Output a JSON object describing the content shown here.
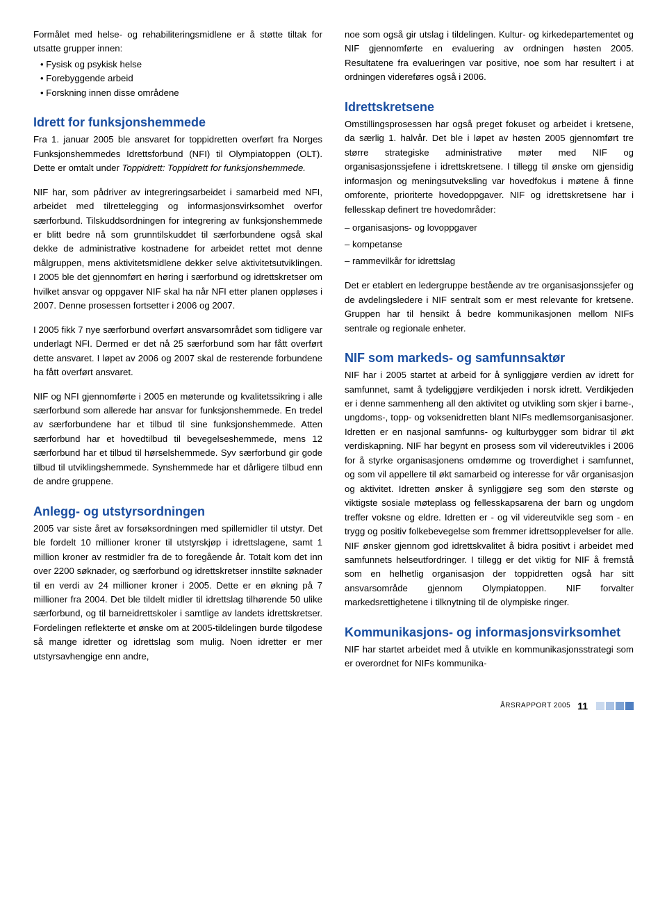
{
  "colors": {
    "heading": "#1a4ea0",
    "text": "#000000",
    "background": "#ffffff",
    "sq1": "#c9d9ee",
    "sq2": "#a9c2e4",
    "sq3": "#7da2d3",
    "sq4": "#4f7fc1"
  },
  "left": {
    "intro": "Formålet med helse- og rehabiliteringsmidlene er å støtte tiltak for utsatte grupper innen:",
    "bullets": [
      "• Fysisk og psykisk helse",
      "• Forebyggende arbeid",
      "• Forskning innen disse områdene"
    ],
    "s1_title": "Idrett for funksjonshemmede",
    "s1_p1a": "Fra 1. januar 2005 ble ansvaret for toppidretten overført fra Norges Funksjonshemmedes Idrettsforbund (NFI) til Olympiatoppen (OLT). Dette er omtalt under ",
    "s1_p1b": "Toppidrett: Toppidrett for funksjonshemmede.",
    "s1_p2": "NIF har, som pådriver av integreringsarbeidet i samarbeid med NFI, arbeidet med tilrettelegging og informasjonsvirksomhet overfor særforbund. Tilskuddsordningen for integrering av funksjonshemmede er blitt bedre nå som grunntilskuddet til særforbundene også skal dekke de administrative kostnadene for arbeidet rettet mot denne målgruppen, mens aktivitetsmidlene dekker selve aktivitetsutviklingen. I 2005 ble det gjennomført en høring i særforbund og idrettskretser om hvilket ansvar og oppgaver NIF skal ha når NFI etter planen oppløses i 2007. Denne prosessen fortsetter i 2006 og 2007.",
    "s1_p3": "I 2005 fikk 7 nye særforbund overført ansvarsområdet som tidligere var underlagt NFI. Dermed er det nå 25 særforbund som har fått overført dette ansvaret. I løpet av 2006 og 2007 skal de resterende forbundene ha fått overført ansvaret.",
    "s1_p4": "NIF og NFI gjennomførte i 2005 en møterunde og kvalitetssikring i alle særforbund som allerede har ansvar for funksjonshemmede. En tredel av særforbundene har et tilbud til sine funksjonshemmede. Atten særforbund har et hovedtilbud til bevegelseshemmede, mens 12 særforbund har et tilbud til hørselshemmede. Syv særforbund gir gode tilbud til utviklingshemmede. Synshemmede har et dårligere tilbud enn de andre gruppene.",
    "s2_title": "Anlegg- og utstyrsordningen",
    "s2_p1": "2005 var siste året av forsøksordningen med spillemidler til utstyr. Det ble fordelt 10 millioner kroner til utstyrskjøp i idrettslagene, samt 1 million kroner av restmidler fra de to foregående år. Totalt kom det inn over 2200 søknader, og særforbund og idrettskretser innstilte søknader til en verdi av 24 millioner kroner i 2005. Dette er en økning på 7 millioner fra 2004. Det ble tildelt midler til idrettslag tilhørende 50 ulike særforbund, og til barneidrettskoler i samtlige av landets idrettskretser. Fordelingen reflekterte et ønske om at 2005-tildelingen burde tilgodese så mange idretter og idrettslag som mulig. Noen idretter er mer utstyrsavhengige enn andre,"
  },
  "right": {
    "top_p": "noe som også gir utslag i tildelingen. Kultur- og kirkedepartementet og NIF gjennomførte en evaluering av ordningen høsten 2005. Resultatene fra evalueringen var positive, noe som har resultert i at ordningen videreføres også i 2006.",
    "s3_title": "Idrettskretsene",
    "s3_p1": "Omstillingsprosessen har også preget fokuset og arbeidet i kretsene, da særlig 1. halvår. Det ble i løpet av høsten 2005 gjennomført tre større strategiske administrative møter med NIF og organisasjonssjefene i idrettskretsene. I tillegg til ønske om gjensidig informasjon og meningsutveksling var hovedfokus i møtene å finne omforente, prioriterte hovedoppgaver. NIF og idrettskretsene har i fellesskap definert tre hovedområder:",
    "s3_items": [
      "– organisasjons- og lovoppgaver",
      "– kompetanse",
      "– rammevilkår for idrettslag"
    ],
    "s3_p2": "Det er etablert en ledergruppe bestående av tre organisasjonssjefer og de avdelingsledere i NIF sentralt som er mest relevante for kretsene. Gruppen har til hensikt å bedre kommunikasjonen mellom NIFs sentrale og regionale enheter.",
    "s4_title": "NIF som markeds- og samfunnsaktør",
    "s4_p1": "NIF har i 2005 startet at arbeid for å synliggjøre verdien av idrett for samfunnet, samt å tydeliggjøre verdikjeden i norsk idrett. Verdikjeden er i denne sammenheng all den aktivitet og utvikling som skjer i barne-, ungdoms-, topp- og voksenidretten blant NIFs medlemsorganisasjoner. Idretten er en nasjonal samfunns- og kulturbygger som bidrar til økt verdiskapning. NIF har begynt en prosess som vil videreutvikles i 2006 for å styrke organisasjonens omdømme og troverdighet i samfunnet, og som vil appellere til økt samarbeid og interesse for vår organisasjon og aktivitet. Idretten ønsker å synliggjøre seg som den største og viktigste sosiale møteplass og fellesskapsarena der barn og ungdom treffer voksne og eldre. Idretten er - og vil videreutvikle seg som - en trygg og positiv folkebevegelse som fremmer idrettsopplevelser for alle. NIF ønsker gjennom god idrettskvalitet å bidra positivt i arbeidet med samfunnets helseutfordringer. I tillegg er det viktig for NIF å fremstå som en helhetlig organisasjon der toppidretten også har sitt ansvarsområde gjennom Olympiatoppen. NIF forvalter markedsrettighetene i tilknytning til de olympiske ringer.",
    "s5_title": "Kommunikasjons- og informasjonsvirksomhet",
    "s5_p1": "NIF har startet arbeidet med å utvikle en kommunikasjonsstrategi som er overordnet for NIFs kommunika-"
  },
  "footer": {
    "label": "ÅRSRAPPORT 2005",
    "page": "11"
  }
}
